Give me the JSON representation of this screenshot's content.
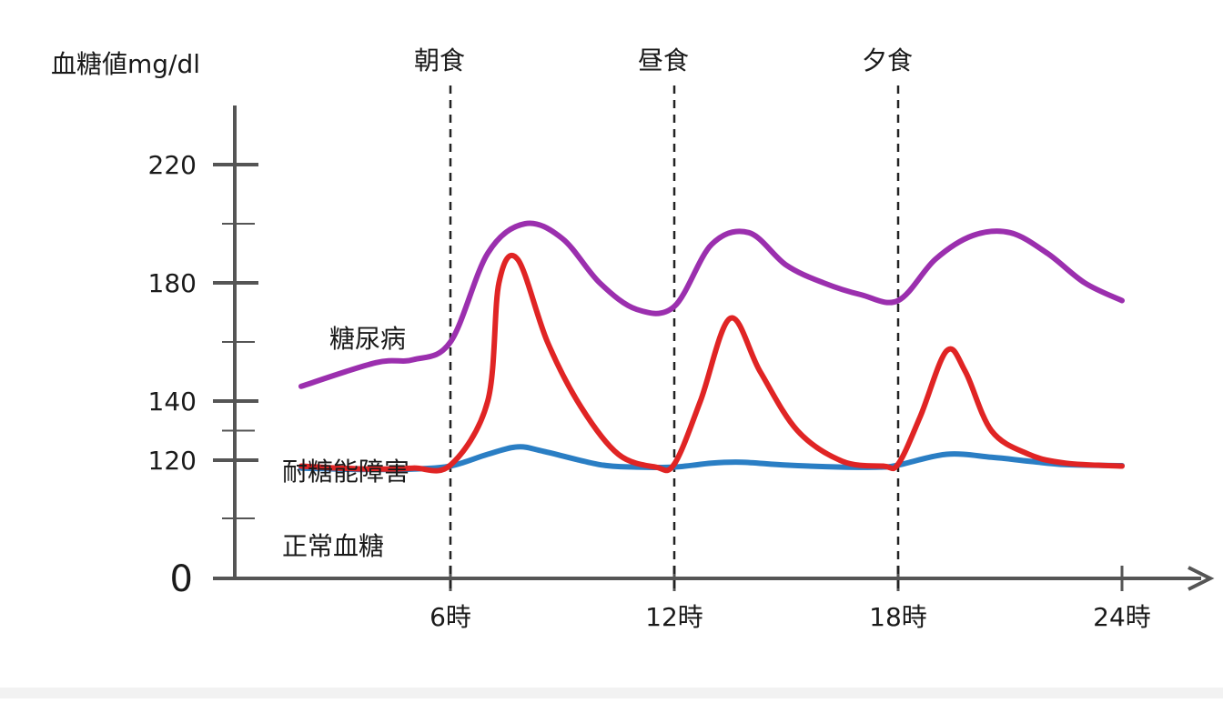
{
  "chart_data": {
    "type": "line",
    "ylabel": "血糖値mg/dl",
    "y_ticks": [
      "220",
      "180",
      "140",
      "120",
      "0"
    ],
    "x_ticks": [
      "6時",
      "12時",
      "18時",
      "24時"
    ],
    "meals": [
      {
        "label": "朝食",
        "x": 6
      },
      {
        "label": "昼食",
        "x": 12
      },
      {
        "label": "夕食",
        "x": 18
      }
    ],
    "grid": false,
    "series": [
      {
        "name": "糖尿病",
        "color": "#9b2fae",
        "points": [
          [
            2,
            145
          ],
          [
            4,
            153
          ],
          [
            5,
            154
          ],
          [
            6,
            160
          ],
          [
            7,
            190
          ],
          [
            8,
            200
          ],
          [
            9,
            195
          ],
          [
            10,
            180
          ],
          [
            11,
            171
          ],
          [
            12,
            172
          ],
          [
            13,
            193
          ],
          [
            14,
            197
          ],
          [
            15,
            186
          ],
          [
            16,
            180
          ],
          [
            17,
            176
          ],
          [
            18,
            174
          ],
          [
            19,
            188
          ],
          [
            20,
            196
          ],
          [
            21,
            197
          ],
          [
            22,
            190
          ],
          [
            23,
            180
          ],
          [
            24,
            174
          ]
        ]
      },
      {
        "name": "耐糖能障害",
        "color": "#e02424",
        "points": [
          [
            2,
            114
          ],
          [
            3,
            112
          ],
          [
            4,
            111
          ],
          [
            5,
            112
          ],
          [
            6,
            115
          ],
          [
            7,
            140
          ],
          [
            7.3,
            180
          ],
          [
            7.8,
            188
          ],
          [
            8.6,
            160
          ],
          [
            9.5,
            138
          ],
          [
            10.5,
            122
          ],
          [
            11.5,
            113
          ],
          [
            12,
            116
          ],
          [
            12.7,
            140
          ],
          [
            13.5,
            168
          ],
          [
            14.3,
            150
          ],
          [
            15.3,
            130
          ],
          [
            16.5,
            119
          ],
          [
            17.6,
            114
          ],
          [
            18,
            116
          ],
          [
            18.6,
            135
          ],
          [
            19.3,
            157
          ],
          [
            19.8,
            150
          ],
          [
            20.5,
            130
          ],
          [
            21.5,
            122
          ],
          [
            22.5,
            117
          ],
          [
            24,
            114
          ]
        ]
      },
      {
        "name": "正常血糖",
        "color": "#2a7ec4",
        "points": [
          [
            2,
            112
          ],
          [
            3,
            111
          ],
          [
            4,
            110.5
          ],
          [
            5,
            111
          ],
          [
            6,
            114
          ],
          [
            7,
            122
          ],
          [
            7.8,
            124.5
          ],
          [
            8.5,
            123
          ],
          [
            10,
            115.5
          ],
          [
            11,
            113
          ],
          [
            12,
            113
          ],
          [
            13,
            117
          ],
          [
            13.8,
            118
          ],
          [
            15,
            115
          ],
          [
            16.5,
            113
          ],
          [
            17.5,
            113
          ],
          [
            18,
            115
          ],
          [
            19.3,
            122
          ],
          [
            20.5,
            121
          ],
          [
            21.5,
            119
          ],
          [
            22.5,
            115.5
          ],
          [
            24,
            114.5
          ]
        ]
      }
    ]
  }
}
